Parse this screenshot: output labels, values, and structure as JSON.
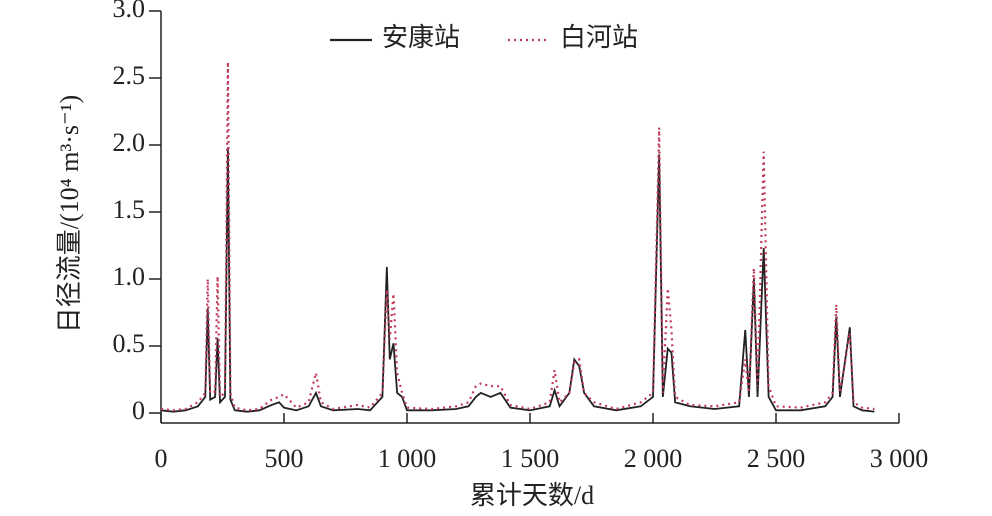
{
  "chart_data": {
    "type": "line",
    "x_label": "累计天数/d",
    "y_label": "日径流量/(10⁴ m³·s⁻¹)",
    "x": [
      0,
      50,
      100,
      150,
      180,
      190,
      200,
      220,
      230,
      240,
      260,
      272,
      282,
      300,
      350,
      400,
      450,
      480,
      500,
      550,
      600,
      630,
      650,
      700,
      800,
      850,
      900,
      918,
      930,
      945,
      960,
      980,
      1000,
      1100,
      1200,
      1250,
      1280,
      1300,
      1340,
      1380,
      1420,
      1500,
      1580,
      1600,
      1620,
      1660,
      1680,
      1700,
      1720,
      1760,
      1850,
      1950,
      2000,
      2025,
      2040,
      2060,
      2075,
      2090,
      2150,
      2250,
      2350,
      2375,
      2390,
      2410,
      2425,
      2450,
      2470,
      2500,
      2600,
      2700,
      2730,
      2745,
      2760,
      2800,
      2815,
      2850,
      2900
    ],
    "series": [
      {
        "name": "安康站",
        "color": "#222222",
        "dash": "none",
        "values": [
          0.02,
          0.01,
          0.02,
          0.05,
          0.12,
          0.78,
          0.1,
          0.12,
          0.56,
          0.08,
          0.12,
          1.98,
          0.1,
          0.02,
          0.01,
          0.02,
          0.06,
          0.08,
          0.04,
          0.02,
          0.05,
          0.15,
          0.05,
          0.02,
          0.03,
          0.02,
          0.12,
          1.09,
          0.4,
          0.52,
          0.15,
          0.12,
          0.02,
          0.02,
          0.03,
          0.05,
          0.12,
          0.15,
          0.12,
          0.15,
          0.04,
          0.02,
          0.05,
          0.17,
          0.05,
          0.15,
          0.4,
          0.35,
          0.15,
          0.05,
          0.02,
          0.05,
          0.12,
          1.93,
          0.12,
          0.48,
          0.45,
          0.08,
          0.05,
          0.03,
          0.05,
          0.62,
          0.12,
          1.0,
          0.12,
          1.23,
          0.12,
          0.02,
          0.02,
          0.05,
          0.12,
          0.72,
          0.12,
          0.64,
          0.05,
          0.02,
          0.01
        ]
      },
      {
        "name": "白河站",
        "color": "#c0395a",
        "dash": "dotted",
        "values": [
          0.03,
          0.02,
          0.03,
          0.08,
          0.15,
          1.0,
          0.15,
          0.16,
          1.02,
          0.12,
          0.15,
          2.62,
          0.15,
          0.04,
          0.02,
          0.03,
          0.1,
          0.12,
          0.14,
          0.04,
          0.08,
          0.3,
          0.08,
          0.03,
          0.06,
          0.04,
          0.15,
          0.92,
          0.55,
          0.89,
          0.3,
          0.15,
          0.04,
          0.03,
          0.05,
          0.08,
          0.2,
          0.22,
          0.2,
          0.2,
          0.06,
          0.03,
          0.08,
          0.32,
          0.08,
          0.15,
          0.38,
          0.4,
          0.15,
          0.08,
          0.03,
          0.08,
          0.15,
          2.13,
          0.15,
          0.93,
          0.62,
          0.12,
          0.06,
          0.05,
          0.08,
          0.4,
          0.15,
          1.08,
          0.2,
          1.95,
          0.2,
          0.05,
          0.04,
          0.08,
          0.15,
          0.81,
          0.15,
          0.6,
          0.08,
          0.04,
          0.03
        ]
      }
    ],
    "xlim": [
      0,
      3000
    ],
    "xticks": [
      0,
      500,
      {
        "value": 1000,
        "label": "1 000"
      },
      {
        "value": 1500,
        "label": "1 500"
      },
      {
        "value": 2000,
        "label": "2 000"
      },
      {
        "value": 2500,
        "label": "2 500"
      },
      {
        "value": 3000,
        "label": "3 000"
      }
    ],
    "ylim": [
      0,
      3
    ],
    "yticks": [
      0,
      0.5,
      {
        "value": 1,
        "label": "1.0"
      },
      1.5,
      {
        "value": 2,
        "label": "2.0"
      },
      2.5,
      {
        "value": 3,
        "label": "3.0"
      }
    ],
    "legend": "top"
  }
}
